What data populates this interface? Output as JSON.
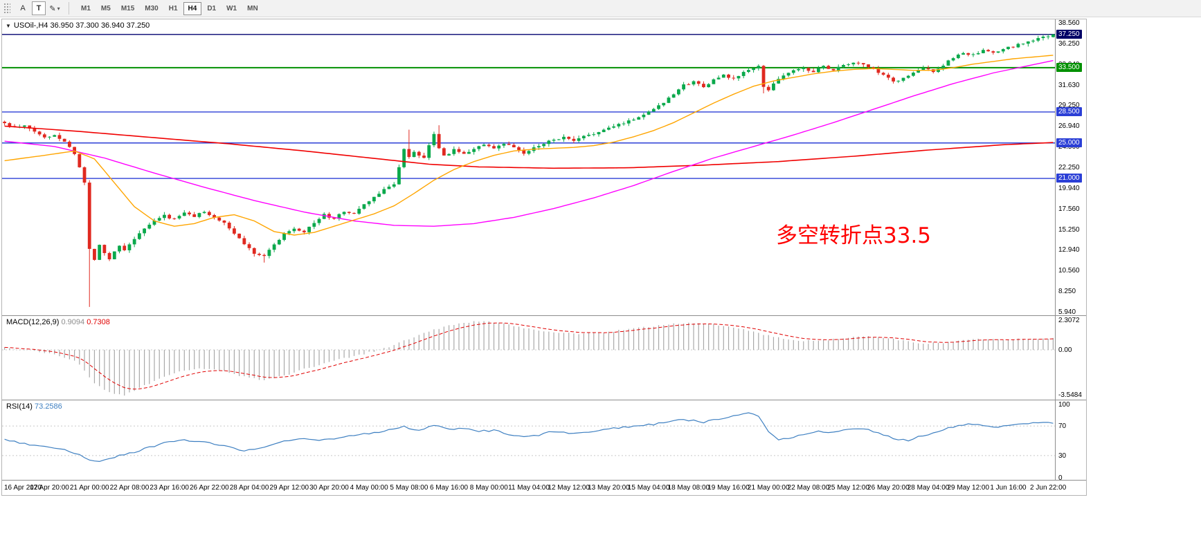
{
  "toolbar": {
    "font_button": "A",
    "text_button": "T",
    "draw_icon": "✎",
    "caret_icon": "▾",
    "timeframes": [
      {
        "label": "M1",
        "active": false
      },
      {
        "label": "M5",
        "active": false
      },
      {
        "label": "M15",
        "active": false
      },
      {
        "label": "M30",
        "active": false
      },
      {
        "label": "H1",
        "active": false
      },
      {
        "label": "H4",
        "active": true
      },
      {
        "label": "D1",
        "active": false
      },
      {
        "label": "W1",
        "active": false
      },
      {
        "label": "MN",
        "active": false
      }
    ]
  },
  "chart": {
    "symbol": "USOil-,H4",
    "open": "36.950",
    "high": "37.300",
    "low": "36.940",
    "close": "37.250",
    "collapse_arrow": "▼",
    "annotation": {
      "text": "多空转折点33.5",
      "color": "#FF0000"
    },
    "price_axis": {
      "ticks": [
        "38.560",
        "36.250",
        "33.940",
        "31.630",
        "29.250",
        "26.940",
        "24.560",
        "22.250",
        "19.940",
        "17.560",
        "15.250",
        "12.940",
        "10.560",
        "8.250",
        "5.940"
      ],
      "special": [
        {
          "label": "37.250",
          "bg": "#000066"
        },
        {
          "label": "33.500",
          "bg": "#009000"
        },
        {
          "label": "28.500",
          "bg": "#2B3FD6"
        },
        {
          "label": "25.000",
          "bg": "#2B3FD6"
        },
        {
          "label": "21.000",
          "bg": "#2B3FD6"
        }
      ]
    }
  },
  "macd": {
    "name": "MACD(12,26,9)",
    "value_main": "0.9094",
    "value_signal": "0.7308",
    "axis": [
      "2.3072",
      "0.00",
      "-3.5484"
    ]
  },
  "rsi": {
    "name": "RSI(14)",
    "value": "73.2586",
    "axis": [
      "100",
      "70",
      "30",
      "0"
    ]
  },
  "time_axis": {
    "labels": [
      "16 Apr 2020",
      "17 Apr 20:00",
      "21 Apr 00:00",
      "22 Apr 08:00",
      "23 Apr 16:00",
      "26 Apr 22:00",
      "28 Apr 04:00",
      "29 Apr 12:00",
      "30 Apr 20:00",
      "4 May 00:00",
      "5 May 08:00",
      "6 May 16:00",
      "8 May 00:00",
      "11 May 04:00",
      "12 May 12:00",
      "13 May 20:00",
      "15 May 04:00",
      "18 May 08:00",
      "19 May 16:00",
      "21 May 00:00",
      "22 May 08:00",
      "25 May 12:00",
      "26 May 20:00",
      "28 May 04:00",
      "29 May 12:00",
      "1 Jun 16:00",
      "2 Jun 22:00"
    ]
  },
  "colors": {
    "candle_up": "#0BA94C",
    "candle_down": "#E02920",
    "ma_red": "#F00000",
    "ma_magenta": "#FF00FF",
    "ma_orange": "#FFA500",
    "macd_hist": "#A8A8A8",
    "macd_signal": "#E00000",
    "rsi_line": "#3D7FC1",
    "level_blue": "#2B3FD6",
    "level_navy": "#000070",
    "level_green": "#009000"
  },
  "chart_data": {
    "type": "candlestick",
    "bars": 211,
    "price_range": [
      5.94,
      38.56
    ],
    "macd_range": [
      -3.5484,
      2.3072
    ],
    "rsi_range": [
      0,
      100
    ],
    "levels": [
      {
        "price": 37.25,
        "color": "#000070",
        "width": 1.4
      },
      {
        "price": 33.5,
        "color": "#009000",
        "width": 2
      },
      {
        "price": 28.5,
        "color": "#2B3FD6",
        "width": 1.4
      },
      {
        "price": 25.0,
        "color": "#2B3FD6",
        "width": 1.4
      },
      {
        "price": 21.0,
        "color": "#2B3FD6",
        "width": 1.4
      }
    ],
    "close_anchors": [
      [
        0,
        27.2
      ],
      [
        2,
        26.7
      ],
      [
        4,
        26.9
      ],
      [
        6,
        26.3
      ],
      [
        8,
        25.6
      ],
      [
        10,
        25.9
      ],
      [
        12,
        25.2
      ],
      [
        14,
        23.8
      ],
      [
        15,
        22.3
      ],
      [
        16,
        20.5
      ],
      [
        17,
        13.0
      ],
      [
        18,
        11.8
      ],
      [
        19,
        13.6
      ],
      [
        20,
        12.6
      ],
      [
        21,
        11.9
      ],
      [
        22,
        12.8
      ],
      [
        23,
        13.4
      ],
      [
        24,
        13.0
      ],
      [
        26,
        14.2
      ],
      [
        28,
        15.3
      ],
      [
        30,
        16.2
      ],
      [
        32,
        16.8
      ],
      [
        34,
        16.4
      ],
      [
        36,
        17.1
      ],
      [
        38,
        16.7
      ],
      [
        40,
        17.3
      ],
      [
        42,
        16.6
      ],
      [
        44,
        15.9
      ],
      [
        46,
        14.8
      ],
      [
        48,
        13.6
      ],
      [
        50,
        12.6
      ],
      [
        52,
        12.3
      ],
      [
        54,
        13.5
      ],
      [
        56,
        14.8
      ],
      [
        58,
        15.4
      ],
      [
        60,
        15.0
      ],
      [
        62,
        16.0
      ],
      [
        64,
        16.9
      ],
      [
        66,
        16.4
      ],
      [
        68,
        17.3
      ],
      [
        70,
        17.0
      ],
      [
        72,
        18.0
      ],
      [
        74,
        18.9
      ],
      [
        76,
        19.7
      ],
      [
        78,
        20.4
      ],
      [
        80,
        24.2
      ],
      [
        81,
        23.5
      ],
      [
        82,
        23.9
      ],
      [
        84,
        23.2
      ],
      [
        86,
        26.1
      ],
      [
        87,
        24.3
      ],
      [
        88,
        23.5
      ],
      [
        90,
        24.2
      ],
      [
        92,
        23.7
      ],
      [
        94,
        24.4
      ],
      [
        96,
        24.8
      ],
      [
        98,
        24.3
      ],
      [
        100,
        24.9
      ],
      [
        102,
        24.5
      ],
      [
        104,
        23.8
      ],
      [
        106,
        24.4
      ],
      [
        108,
        25.0
      ],
      [
        110,
        25.4
      ],
      [
        112,
        25.6
      ],
      [
        114,
        25.2
      ],
      [
        116,
        25.7
      ],
      [
        118,
        26.1
      ],
      [
        120,
        26.4
      ],
      [
        122,
        26.9
      ],
      [
        124,
        27.3
      ],
      [
        126,
        27.7
      ],
      [
        128,
        28.2
      ],
      [
        130,
        28.9
      ],
      [
        132,
        29.6
      ],
      [
        134,
        30.6
      ],
      [
        136,
        31.5
      ],
      [
        138,
        31.9
      ],
      [
        140,
        31.4
      ],
      [
        142,
        32.1
      ],
      [
        144,
        32.6
      ],
      [
        146,
        32.2
      ],
      [
        148,
        33.0
      ],
      [
        150,
        33.4
      ],
      [
        151,
        33.6
      ],
      [
        152,
        31.4
      ],
      [
        153,
        31.0
      ],
      [
        154,
        31.8
      ],
      [
        156,
        32.6
      ],
      [
        158,
        33.2
      ],
      [
        160,
        33.4
      ],
      [
        162,
        33.1
      ],
      [
        164,
        33.6
      ],
      [
        166,
        33.3
      ],
      [
        168,
        33.7
      ],
      [
        170,
        34.1
      ],
      [
        172,
        33.8
      ],
      [
        174,
        33.3
      ],
      [
        176,
        32.6
      ],
      [
        178,
        31.9
      ],
      [
        180,
        32.3
      ],
      [
        182,
        32.9
      ],
      [
        184,
        33.4
      ],
      [
        186,
        33.1
      ],
      [
        188,
        33.8
      ],
      [
        190,
        34.6
      ],
      [
        192,
        35.2
      ],
      [
        194,
        34.9
      ],
      [
        196,
        35.4
      ],
      [
        198,
        35.1
      ],
      [
        200,
        35.6
      ],
      [
        202,
        35.9
      ],
      [
        204,
        36.3
      ],
      [
        206,
        36.6
      ],
      [
        208,
        36.9
      ],
      [
        210,
        37.25
      ]
    ],
    "spikes": [
      {
        "bar": 17,
        "low": 6.5
      },
      {
        "bar": 52,
        "low": 11.5
      },
      {
        "bar": 81,
        "high": 26.5
      },
      {
        "bar": 87,
        "high": 27.0
      },
      {
        "bar": 152,
        "low": 30.6
      },
      {
        "bar": 210,
        "open": 36.95,
        "close": 37.25,
        "high": 37.3,
        "low": 36.9
      }
    ],
    "ma_red_anchors": [
      [
        0,
        26.9
      ],
      [
        15,
        26.3
      ],
      [
        30,
        25.6
      ],
      [
        45,
        24.9
      ],
      [
        60,
        24.1
      ],
      [
        75,
        23.2
      ],
      [
        85,
        22.6
      ],
      [
        95,
        22.3
      ],
      [
        110,
        22.15
      ],
      [
        125,
        22.2
      ],
      [
        140,
        22.5
      ],
      [
        155,
        22.9
      ],
      [
        170,
        23.5
      ],
      [
        185,
        24.2
      ],
      [
        200,
        24.8
      ],
      [
        210,
        25.05
      ]
    ],
    "ma_magenta_anchors": [
      [
        0,
        25.2
      ],
      [
        10,
        24.6
      ],
      [
        20,
        23.3
      ],
      [
        30,
        21.6
      ],
      [
        40,
        20.0
      ],
      [
        50,
        18.5
      ],
      [
        60,
        17.2
      ],
      [
        70,
        16.2
      ],
      [
        78,
        15.7
      ],
      [
        86,
        15.6
      ],
      [
        94,
        15.9
      ],
      [
        102,
        16.6
      ],
      [
        110,
        17.6
      ],
      [
        118,
        18.8
      ],
      [
        126,
        20.2
      ],
      [
        134,
        21.8
      ],
      [
        142,
        23.3
      ],
      [
        150,
        24.6
      ],
      [
        158,
        25.9
      ],
      [
        166,
        27.3
      ],
      [
        174,
        28.8
      ],
      [
        182,
        30.3
      ],
      [
        190,
        31.7
      ],
      [
        198,
        32.9
      ],
      [
        204,
        33.6
      ],
      [
        210,
        34.3
      ]
    ],
    "ma_orange_anchors": [
      [
        0,
        23.0
      ],
      [
        8,
        23.6
      ],
      [
        14,
        24.1
      ],
      [
        18,
        23.2
      ],
      [
        22,
        20.5
      ],
      [
        26,
        17.8
      ],
      [
        30,
        16.2
      ],
      [
        34,
        15.6
      ],
      [
        38,
        15.9
      ],
      [
        42,
        16.6
      ],
      [
        46,
        16.9
      ],
      [
        50,
        16.2
      ],
      [
        54,
        15.0
      ],
      [
        58,
        14.6
      ],
      [
        62,
        14.9
      ],
      [
        66,
        15.6
      ],
      [
        70,
        16.3
      ],
      [
        74,
        17.0
      ],
      [
        78,
        17.9
      ],
      [
        82,
        19.3
      ],
      [
        86,
        20.8
      ],
      [
        90,
        22.0
      ],
      [
        94,
        22.9
      ],
      [
        98,
        23.6
      ],
      [
        102,
        24.1
      ],
      [
        106,
        24.3
      ],
      [
        110,
        24.4
      ],
      [
        114,
        24.5
      ],
      [
        118,
        24.7
      ],
      [
        122,
        25.1
      ],
      [
        126,
        25.7
      ],
      [
        130,
        26.4
      ],
      [
        134,
        27.3
      ],
      [
        138,
        28.4
      ],
      [
        142,
        29.5
      ],
      [
        146,
        30.5
      ],
      [
        150,
        31.4
      ],
      [
        154,
        32.0
      ],
      [
        158,
        32.4
      ],
      [
        162,
        32.8
      ],
      [
        166,
        33.1
      ],
      [
        170,
        33.3
      ],
      [
        174,
        33.4
      ],
      [
        178,
        33.3
      ],
      [
        182,
        33.2
      ],
      [
        186,
        33.2
      ],
      [
        190,
        33.5
      ],
      [
        194,
        33.9
      ],
      [
        198,
        34.2
      ],
      [
        202,
        34.5
      ],
      [
        206,
        34.7
      ],
      [
        210,
        34.9
      ]
    ],
    "macd_anchors": [
      [
        0,
        0.15
      ],
      [
        6,
        -0.1
      ],
      [
        10,
        -0.35
      ],
      [
        14,
        -0.8
      ],
      [
        16,
        -1.6
      ],
      [
        18,
        -2.6
      ],
      [
        20,
        -3.1
      ],
      [
        22,
        -3.45
      ],
      [
        24,
        -3.5
      ],
      [
        26,
        -3.2
      ],
      [
        28,
        -2.8
      ],
      [
        32,
        -2.1
      ],
      [
        36,
        -1.6
      ],
      [
        40,
        -1.45
      ],
      [
        44,
        -1.7
      ],
      [
        48,
        -2.1
      ],
      [
        52,
        -2.35
      ],
      [
        56,
        -2.0
      ],
      [
        60,
        -1.5
      ],
      [
        64,
        -1.05
      ],
      [
        68,
        -0.65
      ],
      [
        72,
        -0.3
      ],
      [
        76,
        0.1
      ],
      [
        80,
        0.7
      ],
      [
        84,
        1.3
      ],
      [
        88,
        1.8
      ],
      [
        92,
        2.1
      ],
      [
        96,
        2.25
      ],
      [
        100,
        2.0
      ],
      [
        104,
        1.7
      ],
      [
        108,
        1.45
      ],
      [
        112,
        1.3
      ],
      [
        116,
        1.25
      ],
      [
        120,
        1.35
      ],
      [
        124,
        1.55
      ],
      [
        128,
        1.75
      ],
      [
        132,
        1.95
      ],
      [
        136,
        2.1
      ],
      [
        140,
        2.05
      ],
      [
        144,
        1.85
      ],
      [
        148,
        1.6
      ],
      [
        152,
        1.2
      ],
      [
        156,
        0.85
      ],
      [
        160,
        0.7
      ],
      [
        164,
        0.75
      ],
      [
        168,
        0.9
      ],
      [
        172,
        1.05
      ],
      [
        176,
        0.95
      ],
      [
        180,
        0.7
      ],
      [
        184,
        0.5
      ],
      [
        188,
        0.55
      ],
      [
        192,
        0.75
      ],
      [
        196,
        0.85
      ],
      [
        200,
        0.8
      ],
      [
        204,
        0.85
      ],
      [
        208,
        0.9
      ],
      [
        210,
        0.91
      ]
    ],
    "rsi_anchors": [
      [
        0,
        52
      ],
      [
        3,
        47
      ],
      [
        6,
        44
      ],
      [
        9,
        42
      ],
      [
        12,
        38
      ],
      [
        15,
        31
      ],
      [
        17,
        25
      ],
      [
        19,
        22
      ],
      [
        21,
        27
      ],
      [
        24,
        31
      ],
      [
        28,
        39
      ],
      [
        32,
        47
      ],
      [
        36,
        51
      ],
      [
        40,
        48
      ],
      [
        44,
        43
      ],
      [
        48,
        37
      ],
      [
        52,
        41
      ],
      [
        56,
        49
      ],
      [
        60,
        53
      ],
      [
        64,
        51
      ],
      [
        68,
        55
      ],
      [
        72,
        59
      ],
      [
        76,
        63
      ],
      [
        80,
        69
      ],
      [
        83,
        64
      ],
      [
        86,
        71
      ],
      [
        89,
        65
      ],
      [
        92,
        67
      ],
      [
        95,
        63
      ],
      [
        98,
        64
      ],
      [
        101,
        59
      ],
      [
        104,
        55
      ],
      [
        107,
        58
      ],
      [
        110,
        63
      ],
      [
        113,
        60
      ],
      [
        116,
        62
      ],
      [
        120,
        65
      ],
      [
        124,
        68
      ],
      [
        128,
        71
      ],
      [
        132,
        74
      ],
      [
        136,
        79
      ],
      [
        140,
        75
      ],
      [
        143,
        80
      ],
      [
        146,
        84
      ],
      [
        149,
        88
      ],
      [
        151,
        82
      ],
      [
        153,
        62
      ],
      [
        155,
        50
      ],
      [
        157,
        54
      ],
      [
        160,
        59
      ],
      [
        163,
        63
      ],
      [
        166,
        61
      ],
      [
        169,
        65
      ],
      [
        172,
        67
      ],
      [
        175,
        61
      ],
      [
        178,
        53
      ],
      [
        181,
        51
      ],
      [
        184,
        57
      ],
      [
        187,
        63
      ],
      [
        190,
        69
      ],
      [
        193,
        73
      ],
      [
        196,
        71
      ],
      [
        199,
        69
      ],
      [
        202,
        71
      ],
      [
        205,
        73
      ],
      [
        208,
        75
      ],
      [
        210,
        73.3
      ]
    ]
  }
}
